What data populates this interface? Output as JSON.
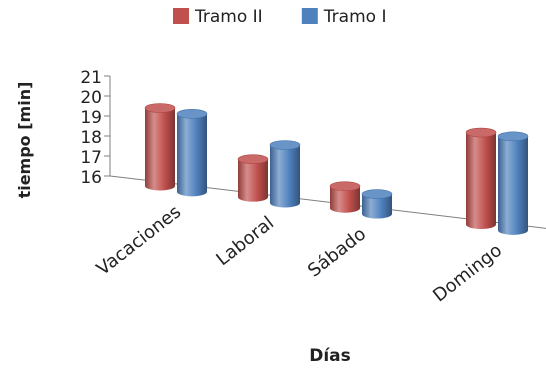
{
  "chart_data": {
    "type": "bar",
    "variant": "3d-cylinder-clustered",
    "categories": [
      "Vacaciones",
      "Laboral",
      "Sábado",
      "Domingo"
    ],
    "series": [
      {
        "name": "Tramo II",
        "values": [
          19.9,
          17.9,
          17.1,
          20.6
        ],
        "color": "#c0504d"
      },
      {
        "name": "Tramo I",
        "values": [
          19.9,
          18.9,
          17.0,
          20.7
        ],
        "color": "#4f81bd"
      }
    ],
    "xlabel": "Días",
    "ylabel": "tiempo [min]",
    "ylim": [
      16,
      21
    ],
    "yticks": [
      16,
      17,
      18,
      19,
      20,
      21
    ],
    "legend_position": "top",
    "grid": false
  }
}
